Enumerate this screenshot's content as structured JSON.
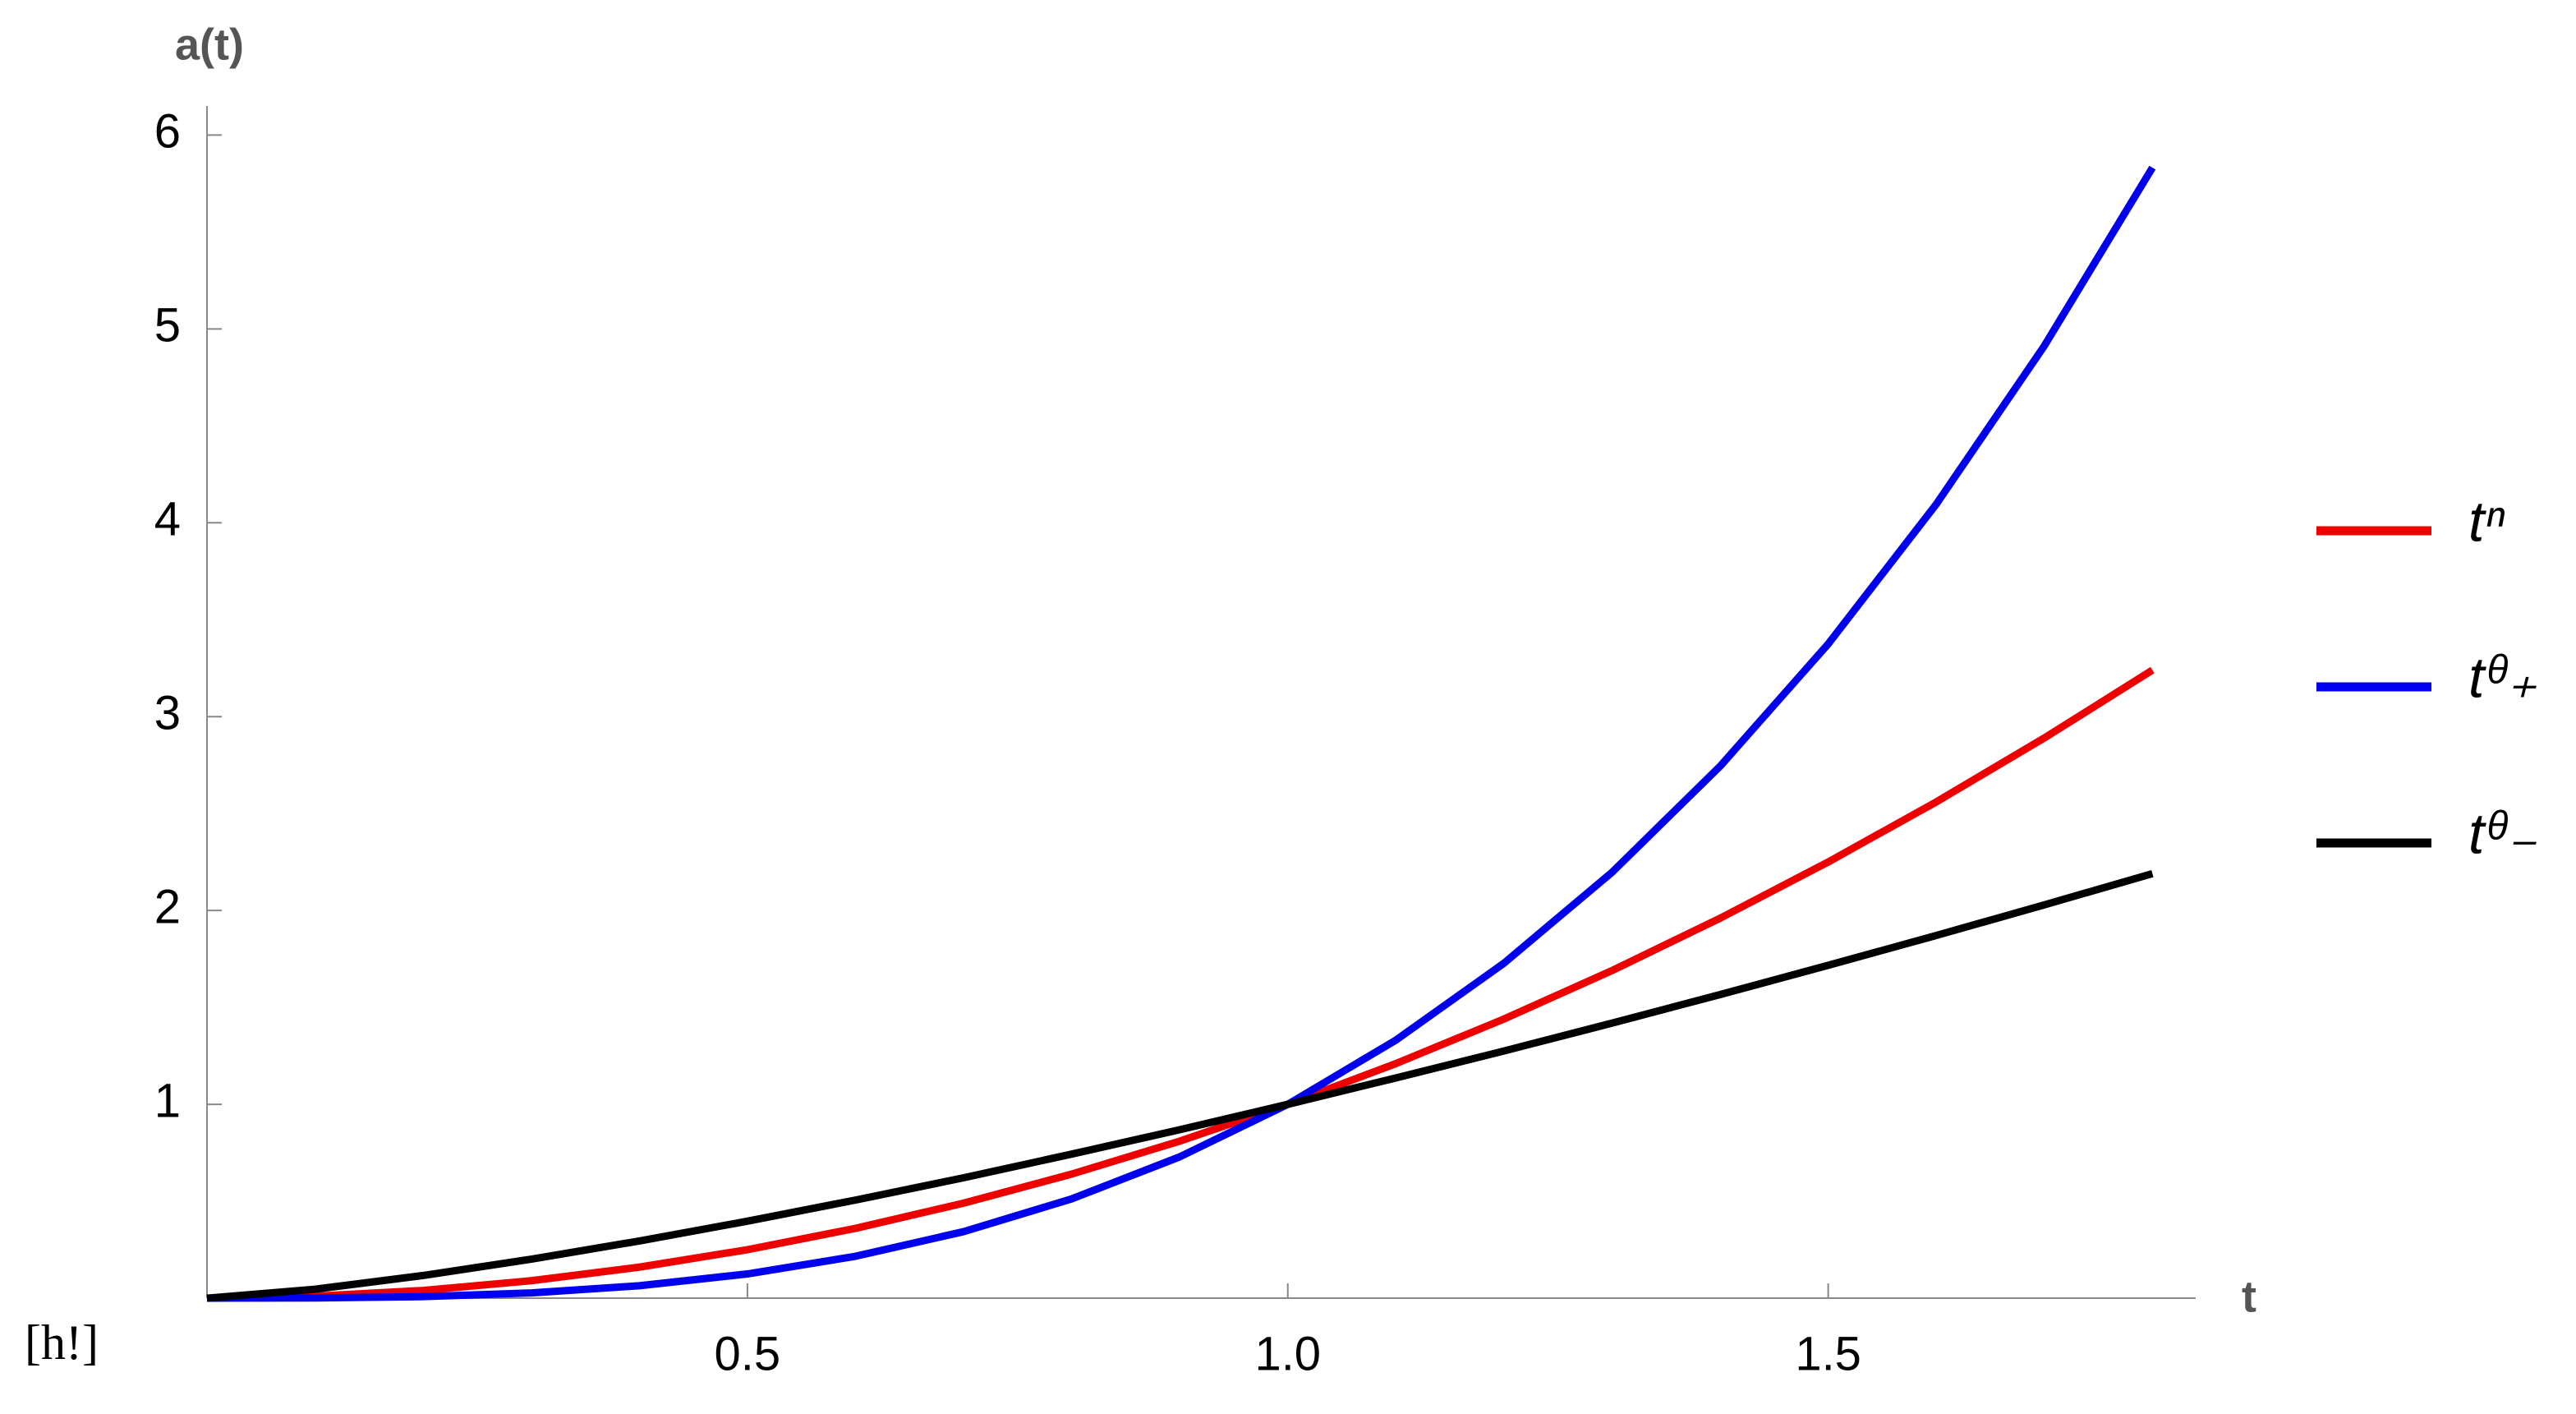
{
  "chart_data": {
    "type": "line",
    "x_label": "t",
    "y_label": "a(t)",
    "annotation": "[h!]",
    "x": [
      0,
      0.1,
      0.2,
      0.3,
      0.4,
      0.5,
      0.6,
      0.7,
      0.8,
      0.9,
      1,
      1.1,
      1.2,
      1.3,
      1.4,
      1.5,
      1.6,
      1.7,
      1.8
    ],
    "series": [
      {
        "name": "tⁿ",
        "color": "#ee0000",
        "values": [
          0,
          0.01,
          0.04,
          0.09,
          0.16,
          0.25,
          0.36,
          0.49,
          0.64,
          0.81,
          1,
          1.21,
          1.44,
          1.69,
          1.96,
          2.25,
          2.56,
          2.89,
          3.24
        ]
      },
      {
        "name": "tᶿ₊",
        "color": "#0000ee",
        "values": [
          0,
          0.001,
          0.008,
          0.027,
          0.064,
          0.125,
          0.216,
          0.343,
          0.512,
          0.729,
          1,
          1.331,
          1.728,
          2.197,
          2.744,
          3.375,
          4.096,
          4.913,
          5.832
        ]
      },
      {
        "name": "tᶿ₋",
        "color": "#000000",
        "values": [
          0,
          0.046,
          0.117,
          0.201,
          0.295,
          0.397,
          0.506,
          0.621,
          0.743,
          0.869,
          1,
          1.136,
          1.275,
          1.419,
          1.566,
          1.717,
          1.871,
          2.029,
          2.19
        ]
      }
    ],
    "xlim": [
      0,
      1.84
    ],
    "ylim": [
      0,
      6.15
    ],
    "xticks": [
      0.5,
      {
        "value": 1,
        "label": "1.0"
      },
      1.5
    ],
    "yticks": [
      1,
      2,
      3,
      4,
      5,
      6
    ],
    "grid": false,
    "legend": "right"
  }
}
